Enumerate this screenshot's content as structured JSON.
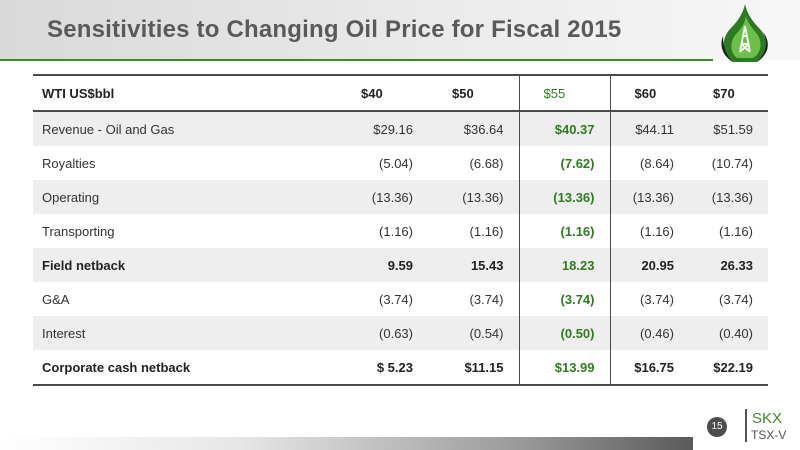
{
  "title": "Sensitivities to Changing Oil Price for Fiscal 2015",
  "table": {
    "header": [
      "WTI US$bbl",
      "$40",
      "$50",
      "$55",
      "$60",
      "$70"
    ],
    "rows": [
      {
        "label": "Revenue - Oil and Gas",
        "values": [
          "$29.16",
          "$36.64",
          "$40.37",
          "$44.11",
          "$51.59"
        ]
      },
      {
        "label": "Royalties",
        "values": [
          "(5.04)",
          "(6.68)",
          "(7.62)",
          "(8.64)",
          "(10.74)"
        ]
      },
      {
        "label": "Operating",
        "values": [
          "(13.36)",
          "(13.36)",
          "(13.36)",
          "(13.36)",
          "(13.36)"
        ]
      },
      {
        "label": "Transporting",
        "values": [
          "(1.16)",
          "(1.16)",
          "(1.16)",
          "(1.16)",
          "(1.16)"
        ]
      },
      {
        "label": "Field netback",
        "values": [
          "9.59",
          "15.43",
          "18.23",
          "20.95",
          "26.33"
        ]
      },
      {
        "label": "G&A",
        "values": [
          "(3.74)",
          "(3.74)",
          "(3.74)",
          "(3.74)",
          "(3.74)"
        ]
      },
      {
        "label": "Interest",
        "values": [
          "(0.63)",
          "(0.54)",
          "(0.50)",
          "(0.46)",
          "(0.40)"
        ]
      },
      {
        "label": "Corporate cash netback",
        "values": [
          "$ 5.23",
          "$11.15",
          "$13.99",
          "$16.75",
          "$22.19"
        ]
      }
    ]
  },
  "footer": {
    "page_number": "15",
    "ticker": "SKX",
    "exchange": "TSX-V"
  },
  "logo_icon": "oil-drop-leaf-icon",
  "colors": {
    "accent_green": "#3d8a2c",
    "highlight_green": "#2f7d1e",
    "title_gray": "#5a5a5a",
    "row_shade": "#eeeeee"
  }
}
